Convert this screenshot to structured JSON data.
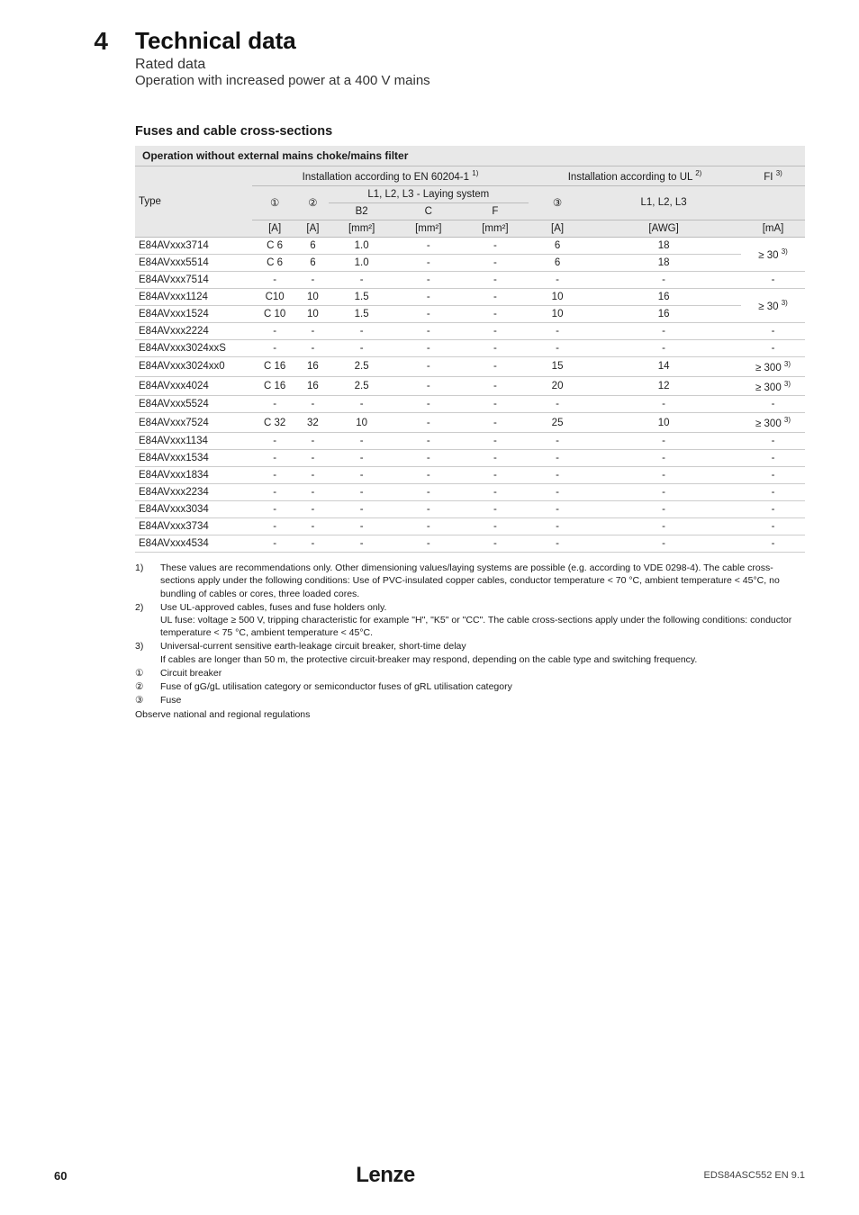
{
  "chapter_num": "4",
  "title": "Technical data",
  "subtitle1": "Rated data",
  "subtitle2": "Operation with increased power at a 400 V mains",
  "section_heading": "Fuses and cable cross-sections",
  "table_caption": "Operation without external mains choke/mains filter",
  "header": {
    "type": "Type",
    "en_header": "Installation according to EN 60204-1",
    "en_sup": "1)",
    "ul_header": "Installation according to UL",
    "ul_sup": "2)",
    "fi": "FI",
    "fi_sup": "3)",
    "circ1": "①",
    "circ2": "②",
    "laying": "L1, L2, L3 - Laying system",
    "circ3": "③",
    "l1l2l3": "L1, L2, L3",
    "b2": "B2",
    "c": "C",
    "f": "F",
    "u_a": "[A]",
    "u_mm2": "[mm²]",
    "u_awg": "[AWG]",
    "u_ma": "[mA]"
  },
  "rows": [
    {
      "type": "E84AVxxx3714",
      "c1": "C 6",
      "c2": "6",
      "b2": "1.0",
      "c": "-",
      "f": "-",
      "c3": "6",
      "awg": "18",
      "fi": "≥ 30",
      "fis": "3)",
      "merge": "top"
    },
    {
      "type": "E84AVxxx5514",
      "c1": "C 6",
      "c2": "6",
      "b2": "1.0",
      "c": "-",
      "f": "-",
      "c3": "6",
      "awg": "18",
      "fi": "",
      "fis": "",
      "merge": "bot"
    },
    {
      "type": "E84AVxxx7514",
      "c1": "-",
      "c2": "-",
      "b2": "-",
      "c": "-",
      "f": "-",
      "c3": "-",
      "awg": "-",
      "fi": "-",
      "fis": ""
    },
    {
      "type": "E84AVxxx1124",
      "c1": "C10",
      "c2": "10",
      "b2": "1.5",
      "c": "-",
      "f": "-",
      "c3": "10",
      "awg": "16",
      "fi": "≥ 30",
      "fis": "3)",
      "merge": "top"
    },
    {
      "type": "E84AVxxx1524",
      "c1": "C 10",
      "c2": "10",
      "b2": "1.5",
      "c": "-",
      "f": "-",
      "c3": "10",
      "awg": "16",
      "fi": "",
      "fis": "",
      "merge": "bot"
    },
    {
      "type": "E84AVxxx2224",
      "c1": "-",
      "c2": "-",
      "b2": "-",
      "c": "-",
      "f": "-",
      "c3": "-",
      "awg": "-",
      "fi": "-",
      "fis": ""
    },
    {
      "type": "E84AVxxx3024xxS",
      "c1": "-",
      "c2": "-",
      "b2": "-",
      "c": "-",
      "f": "-",
      "c3": "-",
      "awg": "-",
      "fi": "-",
      "fis": ""
    },
    {
      "type": "E84AVxxx3024xx0",
      "c1": "C 16",
      "c2": "16",
      "b2": "2.5",
      "c": "-",
      "f": "-",
      "c3": "15",
      "awg": "14",
      "fi": "≥ 300",
      "fis": "3)"
    },
    {
      "type": "E84AVxxx4024",
      "c1": "C 16",
      "c2": "16",
      "b2": "2.5",
      "c": "-",
      "f": "-",
      "c3": "20",
      "awg": "12",
      "fi": "≥ 300",
      "fis": "3)"
    },
    {
      "type": "E84AVxxx5524",
      "c1": "-",
      "c2": "-",
      "b2": "-",
      "c": "-",
      "f": "-",
      "c3": "-",
      "awg": "-",
      "fi": "-",
      "fis": ""
    },
    {
      "type": "E84AVxxx7524",
      "c1": "C 32",
      "c2": "32",
      "b2": "10",
      "c": "-",
      "f": "-",
      "c3": "25",
      "awg": "10",
      "fi": "≥ 300",
      "fis": "3)"
    },
    {
      "type": "E84AVxxx1134",
      "c1": "-",
      "c2": "-",
      "b2": "-",
      "c": "-",
      "f": "-",
      "c3": "-",
      "awg": "-",
      "fi": "-",
      "fis": ""
    },
    {
      "type": "E84AVxxx1534",
      "c1": "-",
      "c2": "-",
      "b2": "-",
      "c": "-",
      "f": "-",
      "c3": "-",
      "awg": "-",
      "fi": "-",
      "fis": ""
    },
    {
      "type": "E84AVxxx1834",
      "c1": "-",
      "c2": "-",
      "b2": "-",
      "c": "-",
      "f": "-",
      "c3": "-",
      "awg": "-",
      "fi": "-",
      "fis": ""
    },
    {
      "type": "E84AVxxx2234",
      "c1": "-",
      "c2": "-",
      "b2": "-",
      "c": "-",
      "f": "-",
      "c3": "-",
      "awg": "-",
      "fi": "-",
      "fis": ""
    },
    {
      "type": "E84AVxxx3034",
      "c1": "-",
      "c2": "-",
      "b2": "-",
      "c": "-",
      "f": "-",
      "c3": "-",
      "awg": "-",
      "fi": "-",
      "fis": ""
    },
    {
      "type": "E84AVxxx3734",
      "c1": "-",
      "c2": "-",
      "b2": "-",
      "c": "-",
      "f": "-",
      "c3": "-",
      "awg": "-",
      "fi": "-",
      "fis": ""
    },
    {
      "type": "E84AVxxx4534",
      "c1": "-",
      "c2": "-",
      "b2": "-",
      "c": "-",
      "f": "-",
      "c3": "-",
      "awg": "-",
      "fi": "-",
      "fis": ""
    }
  ],
  "notes": [
    {
      "mark": "1)",
      "text": "These values are recommendations only. Other dimensioning values/laying systems are possible (e.g. according to VDE 0298-4). The cable cross-sections apply under the following conditions: Use of PVC-insulated copper cables, conductor temperature < 70 °C, ambient temperature < 45°C, no bundling of cables or cores, three loaded cores."
    },
    {
      "mark": "2)",
      "text": "Use UL-approved cables, fuses and fuse holders only.\nUL fuse: voltage ≥ 500 V, tripping characteristic for example \"H\", \"K5\" or \"CC\". The cable cross-sections apply under the following conditions: conductor temperature < 75 °C, ambient temperature < 45°C."
    },
    {
      "mark": "3)",
      "text": "Universal-current sensitive earth-leakage circuit breaker, short-time delay\nIf cables are longer than 50 m, the protective circuit-breaker may respond, depending on the cable type and switching frequency."
    },
    {
      "mark": "①",
      "text": "Circuit breaker"
    },
    {
      "mark": "②",
      "text": "Fuse of gG/gL utilisation category or semiconductor fuses of gRL utilisation category"
    },
    {
      "mark": "③",
      "text": "Fuse"
    }
  ],
  "observe": "Observe national and regional regulations",
  "footer": {
    "page": "60",
    "brand": "Lenze",
    "docid": "EDS84ASC552 EN 9.1"
  }
}
